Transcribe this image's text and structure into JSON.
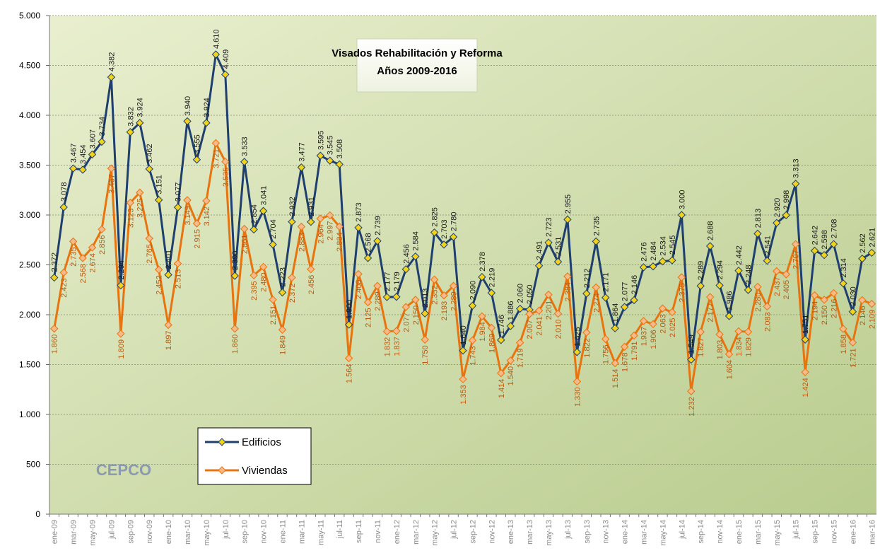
{
  "chart_data": {
    "type": "line",
    "title": "Visados Rehabilitación y Reforma",
    "subtitle": "Años 2009-2016",
    "logo": "CEPCO",
    "categories": [
      "ene-09",
      null,
      "mar-09",
      null,
      "may-09",
      null,
      "jul-09",
      null,
      "sep-09",
      null,
      "nov-09",
      null,
      "ene-10",
      null,
      "mar-10",
      null,
      "may-10",
      null,
      "jul-10",
      null,
      "sep-10",
      null,
      "nov-10",
      null,
      "ene-11",
      null,
      "mar-11",
      null,
      "may-11",
      null,
      "jul-11",
      null,
      "sep-11",
      null,
      "nov-11",
      null,
      "ene-12",
      null,
      "mar-12",
      null,
      "may-12",
      null,
      "jul-12",
      null,
      "sep-12",
      null,
      "nov-12",
      null,
      "ene-13",
      null,
      "mar-13",
      null,
      "may-13",
      null,
      "jul-13",
      null,
      "sep-13",
      null,
      "nov-13",
      null,
      "ene-14",
      null,
      "mar-14",
      null,
      "may-14",
      null,
      "jul-14",
      null,
      "sep-14",
      null,
      "nov-14",
      null,
      "ene-15",
      null,
      "mar-15",
      null,
      "may-15",
      null,
      "jul-15",
      null,
      "sep-15",
      null,
      "nov-15",
      null,
      "ene-16",
      null,
      "mar-16"
    ],
    "series": [
      {
        "name": "Edificios",
        "color": "#1f3f6e",
        "marker": "#f2d21b",
        "values": [
          2372,
          3078,
          3467,
          3454,
          3607,
          3734,
          4382,
          2294,
          3832,
          3924,
          3462,
          3151,
          2401,
          3077,
          3940,
          3555,
          3924,
          4610,
          4409,
          2390,
          3533,
          2854,
          3041,
          2704,
          2223,
          2932,
          3477,
          2931,
          3595,
          3545,
          3508,
          1900,
          2873,
          2568,
          2739,
          2177,
          2179,
          2456,
          2584,
          2013,
          2825,
          2703,
          2780,
          1640,
          2090,
          2378,
          2219,
          1746,
          1886,
          2060,
          2050,
          2491,
          2723,
          2531,
          2955,
          1625,
          2212,
          2735,
          2171,
          1864,
          2077,
          2146,
          2476,
          2484,
          2534,
          2545,
          3000,
          1549,
          2289,
          2688,
          2294,
          1986,
          2442,
          2248,
          2813,
          2541,
          2920,
          2998,
          3313,
          1751,
          2642,
          2598,
          2708,
          2314,
          2030,
          2562,
          2621
        ],
        "value_labels": [
          "2.372",
          "3.078",
          "3.467",
          "3.454",
          "3.607",
          "3.734",
          "4.382",
          "2.294",
          "3.832",
          "3.924",
          "3.462",
          "3.151",
          "2.401",
          "3.077",
          "3.940",
          "3.555",
          "3.924",
          "4.610",
          "4.409",
          "2.390",
          "3.533",
          "2.854",
          "3.041",
          "2.704",
          "2.223",
          "2.932",
          "3.477",
          "2.931",
          "3.595",
          "3.545",
          "3.508",
          "1.900",
          "2.873",
          "2.568",
          "2.739",
          "2.177",
          "2.179",
          "2.456",
          "2.584",
          "2.013",
          "2.825",
          "2.703",
          "2.780",
          "1.640",
          "2.090",
          "2.378",
          "2.219",
          "1.746",
          "1.886",
          "2.060",
          "2.050",
          "2.491",
          "2.723",
          "2.531",
          "2.955",
          "1.625",
          "2.212",
          "2.735",
          "2.171",
          "1.864",
          "2.077",
          "2.146",
          "2.476",
          "2.484",
          "2.534",
          "2.545",
          "3.000",
          "1.549",
          "2.289",
          "2.688",
          "2.294",
          "1.986",
          "2.442",
          "2.248",
          "2.813",
          "2.541",
          "2.920",
          "2.998",
          "3.313",
          "1.751",
          "2.642",
          "2.598",
          "2.708",
          "2.314",
          "2.030",
          "2.562",
          "2.621"
        ]
      },
      {
        "name": "Viviendas",
        "color": "#e8740f",
        "marker": "#f5b98a",
        "values": [
          1860,
          2423,
          2735,
          2568,
          2674,
          2856,
          3467,
          1809,
          3123,
          3225,
          2765,
          2452,
          1897,
          2513,
          3149,
          2915,
          3142,
          3721,
          3535,
          1860,
          2861,
          2395,
          2480,
          2151,
          1849,
          2372,
          2883,
          2456,
          2964,
          2997,
          2884,
          1564,
          2408,
          2125,
          2289,
          1832,
          1837,
          2077,
          2150,
          1750,
          2352,
          2193,
          2289,
          1353,
          1743,
          1984,
          1869,
          1414,
          1540,
          1719,
          2007,
          2041,
          2201,
          2010,
          2384,
          1330,
          1822,
          2274,
          1756,
          1514,
          1678,
          1791,
          1937,
          1906,
          2063,
          2025,
          2375,
          1232,
          1827,
          2177,
          1803,
          1604,
          1834,
          1829,
          2280,
          2083,
          2437,
          2405,
          2707,
          1424,
          2194,
          2150,
          2216,
          1858,
          1721,
          2146,
          2109
        ],
        "value_labels": [
          "1.860",
          "2.423",
          "2.735",
          "2.568",
          "2.674",
          "2.856",
          "3.467",
          "1.809",
          "3.123",
          "3.225",
          "2.765",
          "2.452",
          "1.897",
          "2.513",
          "3.149",
          "2.915",
          "3.142",
          "3.721",
          "3.535",
          "1.860",
          "2.861",
          "2.395",
          "2.480",
          "2.151",
          "1.849",
          "2.372",
          "2.883",
          "2.456",
          "2.964",
          "2.997",
          "2.884",
          "1.564",
          "2.408",
          "2.125",
          "2.289",
          "1.832",
          "1.837",
          "2.077",
          "2.150",
          "1.750",
          "2.352",
          "2.193",
          "2.289",
          "1.353",
          "1.743",
          "1.984",
          "1.869",
          "1.414",
          "1.540",
          "1.719",
          "2.007",
          "2.041",
          "2.201",
          "2.010",
          "2.384",
          "1.330",
          "1.822",
          "2.274",
          "1.756",
          "1.514",
          "1.678",
          "1.791",
          "1.937",
          "1.906",
          "2.063",
          "2.025",
          "2.375",
          "1.232",
          "1.827",
          "2.177",
          "1.803",
          "1.604",
          "1.834",
          "1.829",
          "2.280",
          "2.083",
          "2.437",
          "2.405",
          "2.707",
          "1.424",
          "2.194",
          "2.150",
          "2.216",
          "1.858",
          "1.721",
          "2.146",
          "2.109"
        ]
      }
    ],
    "ylim": [
      0,
      5000
    ],
    "yticks": [
      0,
      500,
      {
        "value": 1000,
        "label": "1.000"
      },
      {
        "value": 1500,
        "label": "1.500"
      },
      {
        "value": 2000,
        "label": "2.000"
      },
      {
        "value": 2500,
        "label": "2.500"
      },
      {
        "value": 3000,
        "label": "3.000"
      },
      {
        "value": 3500,
        "label": "3.500"
      },
      {
        "value": 4000,
        "label": "4.000"
      },
      {
        "value": 4500,
        "label": "4.500"
      },
      {
        "value": 5000,
        "label": "5.000"
      }
    ],
    "grid": true,
    "legend": "lower left"
  }
}
